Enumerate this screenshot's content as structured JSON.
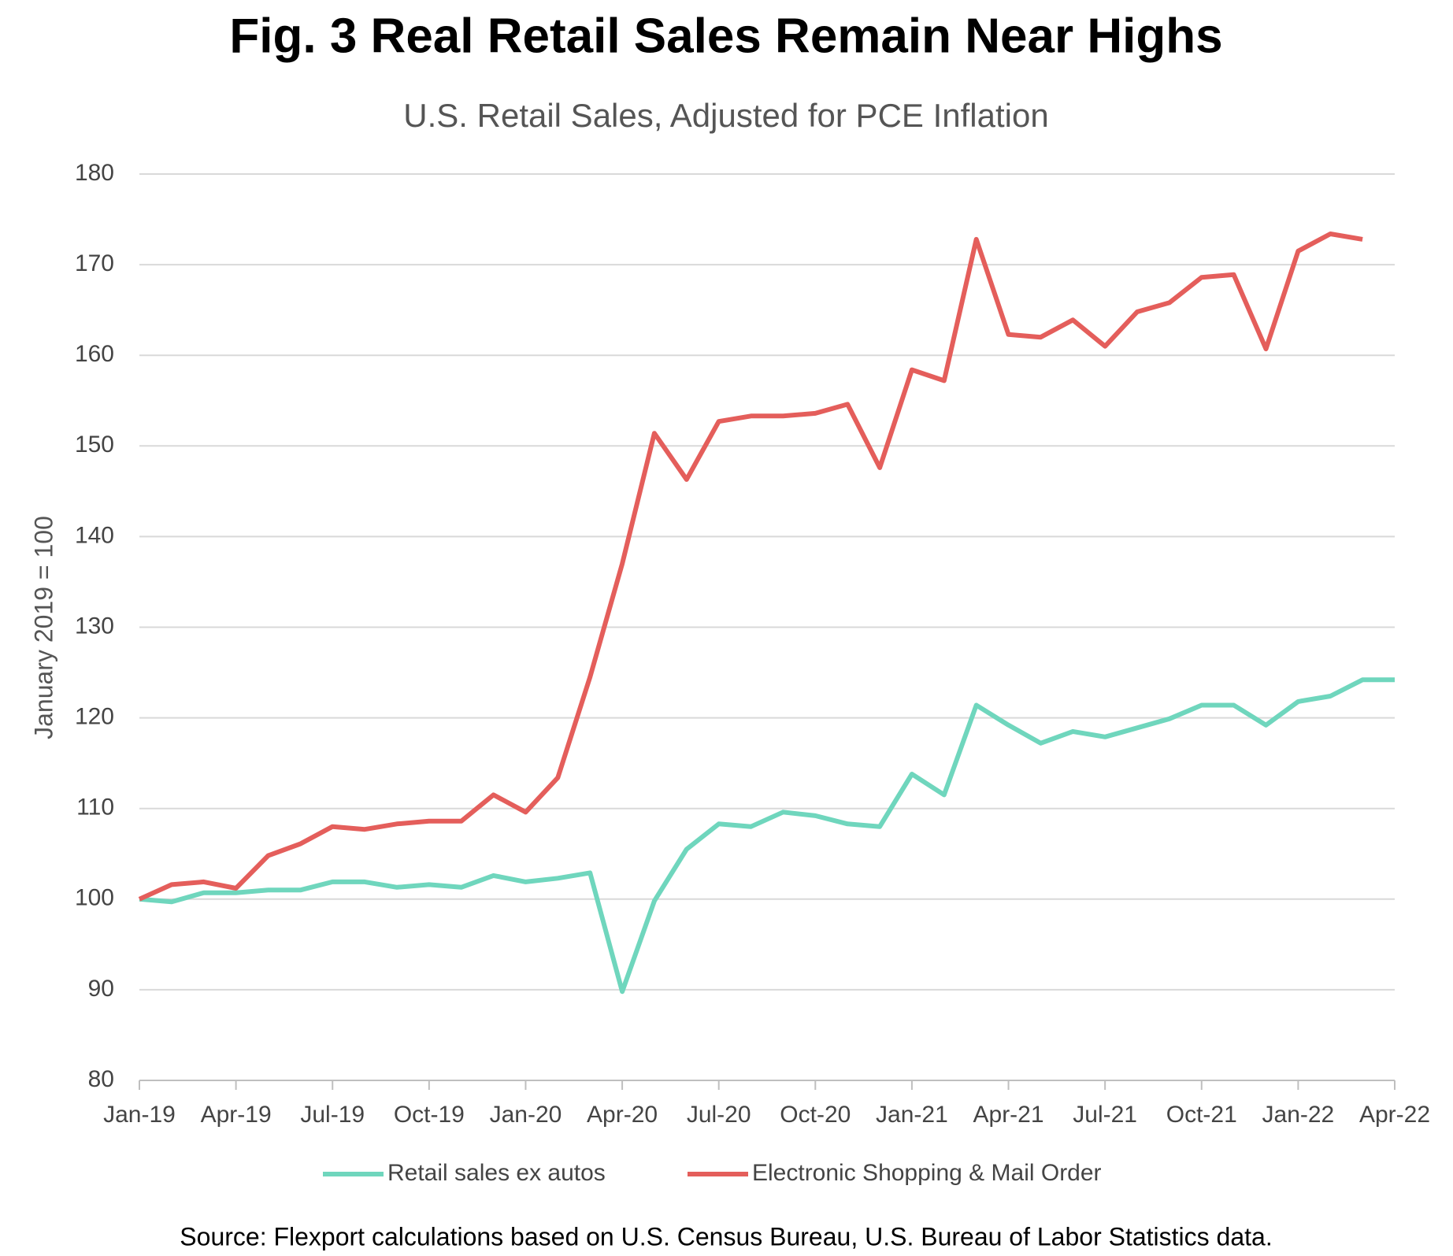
{
  "chart_data": {
    "type": "line",
    "title": "Fig. 3 Real Retail Sales Remain Near Highs",
    "subtitle": "U.S. Retail Sales, Adjusted for PCE Inflation",
    "y_label": "January 2019 = 100",
    "source": "Source: Flexport calculations based on U.S. Census Bureau, U.S. Bureau of Labor Statistics data.",
    "categories": [
      "Jan-19",
      null,
      null,
      "Apr-19",
      null,
      null,
      "Jul-19",
      null,
      null,
      "Oct-19",
      null,
      null,
      "Jan-20",
      null,
      null,
      "Apr-20",
      null,
      null,
      "Jul-20",
      null,
      null,
      "Oct-20",
      null,
      null,
      "Jan-21",
      null,
      null,
      "Apr-21",
      null,
      null,
      "Jul-21",
      null,
      null,
      "Oct-21",
      null,
      null,
      "Jan-22",
      null,
      null,
      "Apr-22"
    ],
    "series": [
      {
        "name": "Retail sales ex autos",
        "color": "#6fd6bd",
        "values": [
          100,
          99.7,
          100.7,
          100.7,
          101,
          101,
          101.9,
          101.9,
          101.3,
          101.6,
          101.3,
          102.6,
          101.9,
          102.3,
          102.9,
          89.8,
          99.8,
          105.5,
          108.3,
          108,
          109.6,
          109.2,
          108.3,
          108,
          113.8,
          111.5,
          121.4,
          119.2,
          117.2,
          118.5,
          117.9,
          118.9,
          119.9,
          121.4,
          121.4,
          119.2,
          121.8,
          122.4,
          124.2,
          124.2
        ]
      },
      {
        "name": "Electronic Shopping & Mail Order",
        "color": "#e45e5b",
        "values": [
          100,
          101.6,
          101.9,
          101.2,
          104.8,
          106.1,
          108,
          107.7,
          108.3,
          108.6,
          108.6,
          111.5,
          109.6,
          113.4,
          124.5,
          137,
          151.4,
          146.3,
          152.7,
          153.3,
          153.3,
          153.6,
          154.6,
          147.6,
          158.4,
          157.2,
          172.8,
          162.3,
          162,
          163.9,
          161,
          164.8,
          165.8,
          168.6,
          168.9,
          160.7,
          171.5,
          173.4,
          172.8,
          null
        ]
      }
    ],
    "ylim": [
      80,
      180
    ],
    "yticks": [
      80,
      90,
      100,
      110,
      120,
      130,
      140,
      150,
      160,
      170,
      180
    ],
    "grid": true,
    "legend": "bottom"
  }
}
